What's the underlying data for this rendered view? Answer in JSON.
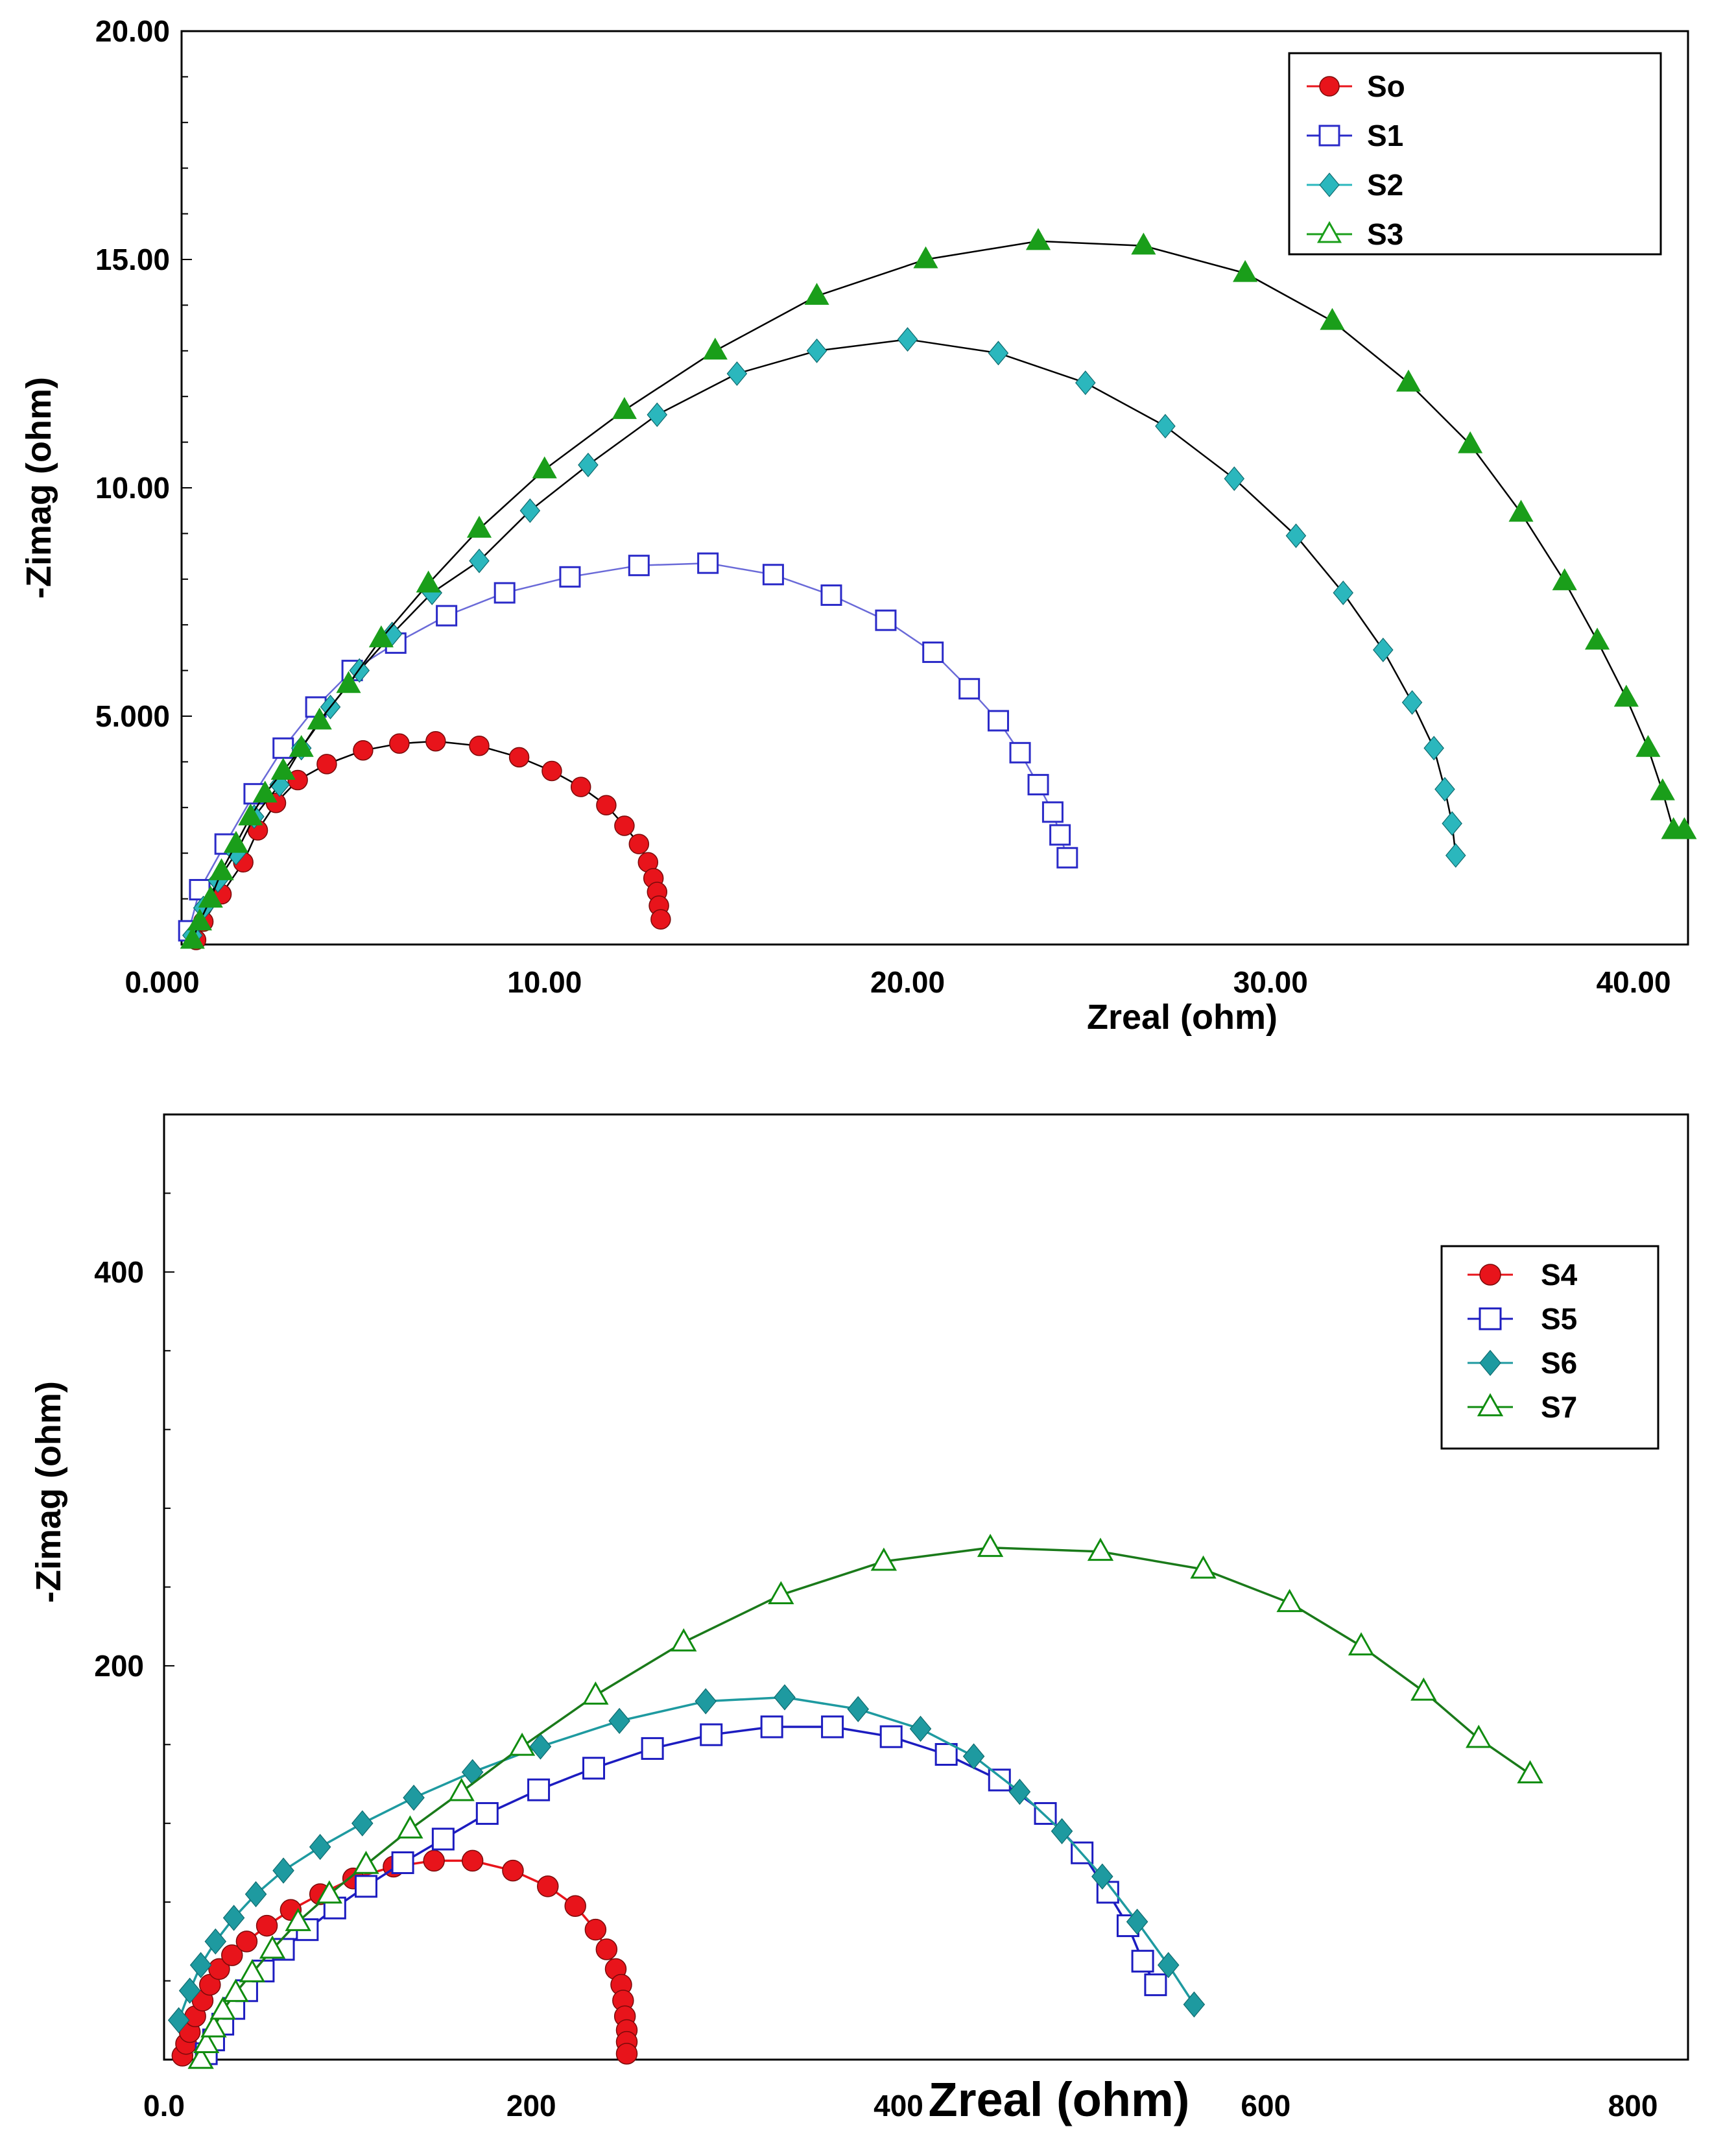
{
  "chart_data": [
    {
      "type": "scatter",
      "xlabel": "Zreal (ohm)",
      "ylabel": "-Zimag (ohm)",
      "xlim": [
        0,
        41.5
      ],
      "ylim": [
        0,
        20
      ],
      "x_ticks": [
        0,
        10,
        20,
        30,
        40
      ],
      "x_tick_labels": [
        "0.000",
        "10.00",
        "20.00",
        "30.00",
        "40.00"
      ],
      "y_ticks": [
        5,
        10,
        15,
        20
      ],
      "y_tick_labels": [
        "5.000",
        "10.00",
        "15.00",
        "20.00"
      ],
      "legend_position": "top-right",
      "series": [
        {
          "name": "So",
          "marker": "circle-filled",
          "color": "#e8141b",
          "line_color": "#000000",
          "x": [
            0.4,
            0.6,
            1.1,
            1.7,
            2.1,
            2.6,
            3.2,
            4.0,
            5.0,
            6.0,
            7.0,
            8.2,
            9.3,
            10.2,
            11.0,
            11.7,
            12.2,
            12.6,
            12.85,
            13.0,
            13.1,
            13.15,
            13.2
          ],
          "y": [
            0.1,
            0.5,
            1.1,
            1.8,
            2.5,
            3.1,
            3.6,
            3.95,
            4.25,
            4.4,
            4.45,
            4.35,
            4.1,
            3.8,
            3.45,
            3.05,
            2.6,
            2.2,
            1.8,
            1.45,
            1.15,
            0.85,
            0.55
          ]
        },
        {
          "name": "S1",
          "marker": "square-open",
          "color": "#2a2ac8",
          "line_color": "#6a6ad8",
          "x": [
            0.2,
            0.5,
            1.2,
            2.0,
            2.8,
            3.7,
            4.7,
            5.9,
            7.3,
            8.9,
            10.7,
            12.6,
            14.5,
            16.3,
            17.9,
            19.4,
            20.7,
            21.7,
            22.5,
            23.1,
            23.6,
            24.0,
            24.2,
            24.4
          ],
          "y": [
            0.3,
            1.2,
            2.2,
            3.3,
            4.3,
            5.2,
            6.0,
            6.6,
            7.2,
            7.7,
            8.05,
            8.3,
            8.35,
            8.1,
            7.65,
            7.1,
            6.4,
            5.6,
            4.9,
            4.2,
            3.5,
            2.9,
            2.4,
            1.9
          ]
        },
        {
          "name": "S2",
          "marker": "diamond-filled",
          "color": "#2bb7bd",
          "line_color": "#000000",
          "x": [
            0.3,
            0.6,
            1.0,
            1.5,
            2.0,
            2.7,
            3.3,
            4.1,
            4.9,
            5.8,
            6.9,
            8.2,
            9.6,
            11.2,
            13.1,
            15.3,
            17.5,
            20.0,
            22.5,
            24.9,
            27.1,
            29.0,
            30.7,
            32.0,
            33.1,
            33.9,
            34.5,
            34.8,
            35.0,
            35.1
          ],
          "y": [
            0.2,
            0.8,
            1.4,
            2.0,
            2.8,
            3.5,
            4.3,
            5.2,
            6.0,
            6.8,
            7.7,
            8.4,
            9.5,
            10.5,
            11.6,
            12.5,
            13.0,
            13.25,
            12.95,
            12.3,
            11.35,
            10.2,
            8.95,
            7.7,
            6.45,
            5.3,
            4.3,
            3.4,
            2.65,
            1.95
          ]
        },
        {
          "name": "S3",
          "marker": "triangle-open",
          "color": "#1a9e1a",
          "fill": "#1a9e1a",
          "line_color": "#000000",
          "x": [
            0.3,
            0.5,
            0.8,
            1.1,
            1.5,
            1.9,
            2.3,
            2.8,
            3.3,
            3.8,
            4.6,
            5.5,
            6.8,
            8.2,
            10.0,
            12.2,
            14.7,
            17.5,
            20.5,
            23.6,
            26.5,
            29.3,
            31.7,
            33.8,
            35.5,
            36.9,
            38.1,
            39.0,
            39.8,
            40.4,
            40.8,
            41.1,
            41.4
          ],
          "y": [
            0.1,
            0.5,
            1.0,
            1.6,
            2.2,
            2.8,
            3.3,
            3.8,
            4.3,
            4.9,
            5.7,
            6.7,
            7.9,
            9.1,
            10.4,
            11.7,
            13.0,
            14.2,
            15.0,
            15.4,
            15.3,
            14.7,
            13.65,
            12.3,
            10.95,
            9.45,
            7.95,
            6.65,
            5.4,
            4.3,
            3.35,
            2.5,
            2.5
          ]
        }
      ]
    },
    {
      "type": "scatter",
      "xlabel": "Zreal (ohm)",
      "ylabel": "-Zimag (ohm)",
      "xlim": [
        0,
        830
      ],
      "ylim": [
        0,
        480
      ],
      "x_ticks": [
        0,
        200,
        400,
        600,
        800
      ],
      "x_tick_labels": [
        "0.0",
        "200",
        "400",
        "600",
        "800"
      ],
      "y_ticks": [
        200,
        400
      ],
      "y_tick_labels": [
        "200",
        "400"
      ],
      "legend_position": "top-right",
      "series": [
        {
          "name": "S4",
          "marker": "circle-filled",
          "color": "#e8141b",
          "line_color": "#e8141b",
          "x": [
            10,
            12,
            14,
            17,
            21,
            25,
            30,
            37,
            45,
            56,
            69,
            85,
            103,
            125,
            147,
            168,
            190,
            209,
            224,
            235,
            241,
            246,
            249,
            250,
            251,
            252,
            252,
            252
          ],
          "y": [
            2,
            8,
            14,
            22,
            30,
            38,
            46,
            53,
            60,
            68,
            76,
            84,
            92,
            98,
            101,
            101,
            96,
            88,
            78,
            66,
            56,
            46,
            38,
            30,
            22,
            15,
            9,
            3
          ]
        },
        {
          "name": "S5",
          "marker": "square-open",
          "color": "#1c1cc0",
          "line_color": "#1c1cc0",
          "x": [
            23,
            27,
            32,
            38,
            45,
            54,
            65,
            78,
            93,
            110,
            130,
            152,
            176,
            204,
            234,
            266,
            298,
            331,
            364,
            396,
            426,
            455,
            480,
            500,
            514,
            525,
            533,
            540
          ],
          "y": [
            3,
            10,
            18,
            26,
            35,
            45,
            56,
            66,
            77,
            88,
            100,
            112,
            125,
            137,
            148,
            158,
            165,
            169,
            169,
            164,
            155,
            142,
            125,
            105,
            85,
            68,
            50,
            38
          ]
        },
        {
          "name": "S6",
          "marker": "diamond-filled",
          "color": "#1e9aa0",
          "line_color": "#1e9aa0",
          "x": [
            8,
            14,
            20,
            28,
            38,
            50,
            65,
            85,
            108,
            136,
            168,
            205,
            248,
            295,
            338,
            378,
            412,
            441,
            466,
            489,
            511,
            530,
            547,
            561
          ],
          "y": [
            20,
            35,
            48,
            60,
            72,
            84,
            96,
            108,
            120,
            133,
            146,
            159,
            172,
            182,
            184,
            178,
            168,
            154,
            136,
            116,
            93,
            70,
            48,
            28
          ]
        },
        {
          "name": "S7",
          "marker": "triangle-open",
          "color": "#0f8c0f",
          "line_color": "#1a7a1a",
          "x": [
            20,
            23,
            27,
            32,
            39,
            48,
            59,
            73,
            90,
            110,
            134,
            162,
            195,
            235,
            283,
            336,
            392,
            450,
            510,
            566,
            613,
            652,
            686,
            716,
            744
          ],
          "y": [
            0,
            8,
            16,
            25,
            34,
            44,
            56,
            70,
            84,
            99,
            117,
            136,
            159,
            185,
            212,
            236,
            253,
            260,
            258,
            249,
            232,
            210,
            187,
            163,
            145
          ]
        }
      ]
    }
  ]
}
